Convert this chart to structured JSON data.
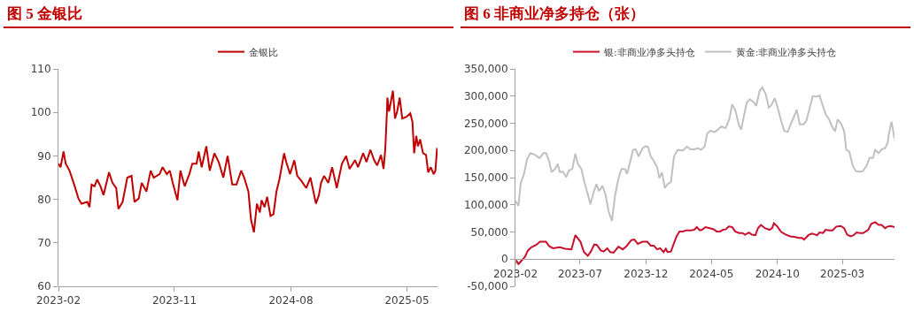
{
  "chart_data": [
    {
      "type": "line",
      "title": "图 5 金银比",
      "legend": "top",
      "grid": false,
      "xlim": [
        "2023-02-01",
        "2025-07-12"
      ],
      "xticks": [
        {
          "value": "2023-02-01",
          "label": "2023-02"
        },
        {
          "value": "2023-11-01",
          "label": "2023-11"
        },
        {
          "value": "2024-08-01",
          "label": "2024-08"
        },
        {
          "value": "2025-05-01",
          "label": "2025-05"
        }
      ],
      "ylim": [
        60,
        110
      ],
      "yticks": [
        60,
        70,
        80,
        90,
        100,
        110
      ],
      "series": [
        {
          "name": "金银比",
          "color": "#c00000",
          "x": [
            "2023-02-01",
            "2023-02-06",
            "2023-02-13",
            "2023-02-18",
            "2023-02-27",
            "2023-03-10",
            "2023-03-20",
            "2023-03-27",
            "2023-04-10",
            "2023-04-15",
            "2023-04-20",
            "2023-04-27",
            "2023-05-03",
            "2023-05-11",
            "2023-05-18",
            "2023-05-31",
            "2023-06-08",
            "2023-06-17",
            "2023-06-22",
            "2023-07-02",
            "2023-07-13",
            "2023-07-23",
            "2023-07-30",
            "2023-08-09",
            "2023-08-16",
            "2023-08-27",
            "2023-09-06",
            "2023-09-13",
            "2023-09-27",
            "2023-10-04",
            "2023-10-14",
            "2023-10-21",
            "2023-10-28",
            "2023-11-08",
            "2023-11-15",
            "2023-11-25",
            "2023-12-06",
            "2023-12-13",
            "2023-12-23",
            "2023-12-28",
            "2024-01-04",
            "2024-01-15",
            "2024-01-23",
            "2024-02-03",
            "2024-02-13",
            "2024-02-24",
            "2024-03-05",
            "2024-03-16",
            "2024-03-26",
            "2024-04-06",
            "2024-04-13",
            "2024-04-23",
            "2024-04-29",
            "2024-05-06",
            "2024-05-13",
            "2024-05-20",
            "2024-05-24",
            "2024-05-31",
            "2024-06-06",
            "2024-06-14",
            "2024-06-21",
            "2024-06-28",
            "2024-07-05",
            "2024-07-16",
            "2024-07-21",
            "2024-07-30",
            "2024-08-09",
            "2024-08-16",
            "2024-08-26",
            "2024-09-06",
            "2024-09-16",
            "2024-09-29",
            "2024-10-06",
            "2024-10-11",
            "2024-10-18",
            "2024-10-28",
            "2024-11-06",
            "2024-11-17",
            "2024-11-29",
            "2024-12-09",
            "2024-12-17",
            "2024-12-30",
            "2025-01-06",
            "2025-01-18",
            "2025-01-26",
            "2025-02-04",
            "2025-02-13",
            "2025-02-20",
            "2025-03-01",
            "2025-03-07",
            "2025-03-11",
            "2025-03-15",
            "2025-03-16",
            "2025-03-20",
            "2025-03-29",
            "2025-04-03",
            "2025-04-08",
            "2025-04-14",
            "2025-04-20",
            "2025-04-30",
            "2025-05-09",
            "2025-05-14",
            "2025-05-18",
            "2025-05-23",
            "2025-05-27",
            "2025-06-01",
            "2025-06-08",
            "2025-06-15",
            "2025-06-20",
            "2025-06-26",
            "2025-07-03",
            "2025-07-07",
            "2025-07-11"
          ],
          "values": [
            88.2,
            87.4,
            91.0,
            88.2,
            86.6,
            83.4,
            80.2,
            79.0,
            79.4,
            78.2,
            83.4,
            83.0,
            84.6,
            83.0,
            81.0,
            86.2,
            83.8,
            82.6,
            77.8,
            79.4,
            85.0,
            85.4,
            79.4,
            80.2,
            83.8,
            81.8,
            86.6,
            85.0,
            85.8,
            87.4,
            85.8,
            86.6,
            83.8,
            79.8,
            86.6,
            83.0,
            85.8,
            88.2,
            88.2,
            91.0,
            87.4,
            92.2,
            86.6,
            90.6,
            88.6,
            85.0,
            90.0,
            83.4,
            83.4,
            86.6,
            85.0,
            81.8,
            75.4,
            72.4,
            79.0,
            77.0,
            79.8,
            78.2,
            80.6,
            76.2,
            76.6,
            81.8,
            84.6,
            90.6,
            88.6,
            85.8,
            89.0,
            85.4,
            84.2,
            82.6,
            85.0,
            79.0,
            81.0,
            83.8,
            85.4,
            83.8,
            87.4,
            82.6,
            88.2,
            90.0,
            87.0,
            89.0,
            87.4,
            90.6,
            88.6,
            91.4,
            89.0,
            87.8,
            90.2,
            87.0,
            91.4,
            100.2,
            103.4,
            100.2,
            105.0,
            98.6,
            100.2,
            103.4,
            98.6,
            99.0,
            99.8,
            97.8,
            90.6,
            94.6,
            92.2,
            93.8,
            90.6,
            90.2,
            86.2,
            87.4,
            85.8,
            86.6,
            91.8
          ]
        }
      ]
    },
    {
      "type": "line",
      "title": "图 6 非商业净多持仓（张）",
      "legend": "top",
      "grid": false,
      "xlim": [
        "2023-02-01",
        "2025-06-30"
      ],
      "xticks": [
        {
          "value": "2023-02-01",
          "label": "2023-02"
        },
        {
          "value": "2023-07-01",
          "label": "2023-07"
        },
        {
          "value": "2023-12-01",
          "label": "2023-12"
        },
        {
          "value": "2024-05-01",
          "label": "2024-05"
        },
        {
          "value": "2024-10-01",
          "label": "2024-10"
        },
        {
          "value": "2025-03-01",
          "label": "2025-03"
        }
      ],
      "ylim": [
        -50000,
        350000
      ],
      "yticks": [
        {
          "value": -50000,
          "label": "-50,000"
        },
        0,
        {
          "value": 50000,
          "label": "50,000"
        },
        {
          "value": 100000,
          "label": "100,000"
        },
        {
          "value": 150000,
          "label": "150,000"
        },
        {
          "value": 200000,
          "label": "200,000"
        },
        {
          "value": 250000,
          "label": "250,000"
        },
        {
          "value": 300000,
          "label": "300,000"
        },
        {
          "value": 350000,
          "label": "350,000"
        }
      ],
      "series": [
        {
          "name": "银:非商业净多头持仓",
          "color": "#c8102e",
          "x": [
            "2023-02-01",
            "2023-02-08",
            "2023-02-16",
            "2023-02-23",
            "2023-03-02",
            "2023-03-10",
            "2023-03-21",
            "2023-03-30",
            "2023-04-13",
            "2023-04-20",
            "2023-04-29",
            "2023-05-15",
            "2023-05-27",
            "2023-06-11",
            "2023-06-20",
            "2023-07-02",
            "2023-07-10",
            "2023-07-19",
            "2023-07-26",
            "2023-08-03",
            "2023-08-09",
            "2023-08-18",
            "2023-08-25",
            "2023-09-02",
            "2023-09-09",
            "2023-09-17",
            "2023-09-28",
            "2023-10-08",
            "2023-10-17",
            "2023-10-28",
            "2023-11-04",
            "2023-11-12",
            "2023-11-23",
            "2023-12-04",
            "2023-12-12",
            "2023-12-19",
            "2023-12-27",
            "2024-01-03",
            "2024-01-11",
            "2024-01-16",
            "2024-01-20",
            "2024-01-28",
            "2024-02-02",
            "2024-02-10",
            "2024-02-17",
            "2024-02-25",
            "2024-03-03",
            "2024-03-14",
            "2024-03-22",
            "2024-03-28",
            "2024-04-04",
            "2024-04-09",
            "2024-04-17",
            "2024-04-27",
            "2024-05-06",
            "2024-05-13",
            "2024-05-21",
            "2024-05-28",
            "2024-06-04",
            "2024-06-10",
            "2024-06-18",
            "2024-06-25",
            "2024-07-04",
            "2024-07-12",
            "2024-07-18",
            "2024-07-27",
            "2024-08-03",
            "2024-08-11",
            "2024-08-17",
            "2024-08-24",
            "2024-09-02",
            "2024-09-13",
            "2024-09-19",
            "2024-09-23",
            "2024-10-01",
            "2024-10-10",
            "2024-10-21",
            "2024-10-31",
            "2024-11-09",
            "2024-11-20",
            "2024-11-27",
            "2024-12-02",
            "2024-12-12",
            "2024-12-20",
            "2024-12-29",
            "2025-01-01",
            "2025-01-07",
            "2025-01-15",
            "2025-01-21",
            "2025-01-30",
            "2025-02-06",
            "2025-02-15",
            "2025-02-25",
            "2025-03-05",
            "2025-03-12",
            "2025-03-20",
            "2025-03-27",
            "2025-04-03",
            "2025-04-11",
            "2025-04-18",
            "2025-04-30",
            "2025-05-07",
            "2025-05-16",
            "2025-05-24",
            "2025-05-31",
            "2025-06-08",
            "2025-06-14",
            "2025-06-21",
            "2025-06-30"
          ],
          "values": [
            0,
            -9000,
            -2000,
            4000,
            16000,
            22000,
            26000,
            32000,
            32000,
            24000,
            20000,
            22000,
            19000,
            18000,
            44000,
            32000,
            13000,
            6000,
            14000,
            27000,
            26000,
            16000,
            14000,
            20000,
            13000,
            12000,
            23000,
            18000,
            24000,
            35000,
            36000,
            28000,
            32000,
            32000,
            25000,
            25000,
            18000,
            20000,
            13000,
            19000,
            13000,
            14000,
            25000,
            42000,
            51000,
            51000,
            53000,
            53000,
            54000,
            59000,
            53000,
            54000,
            59000,
            57000,
            55000,
            51000,
            51000,
            54000,
            55000,
            60000,
            59000,
            51000,
            48000,
            48000,
            45000,
            49000,
            45000,
            44000,
            57000,
            63000,
            57000,
            54000,
            57000,
            66000,
            60000,
            50000,
            45000,
            42000,
            41000,
            39000,
            39000,
            36000,
            44000,
            47000,
            45000,
            44000,
            49000,
            48000,
            54000,
            53000,
            53000,
            60000,
            61000,
            57000,
            45000,
            42000,
            44000,
            49000,
            48000,
            48000,
            54000,
            65000,
            68000,
            63000,
            63000,
            57000,
            60000,
            61000,
            59000
          ]
        },
        {
          "name": "黄金:非商业净多头持仓",
          "color": "#c0c0c0",
          "x": [
            "2023-02-01",
            "2023-02-08",
            "2023-02-13",
            "2023-02-21",
            "2023-02-28",
            "2023-03-08",
            "2023-03-18",
            "2023-03-29",
            "2023-04-07",
            "2023-04-13",
            "2023-04-20",
            "2023-04-26",
            "2023-05-04",
            "2023-05-10",
            "2023-05-15",
            "2023-05-22",
            "2023-05-30",
            "2023-06-05",
            "2023-06-13",
            "2023-06-20",
            "2023-06-26",
            "2023-07-04",
            "2023-07-11",
            "2023-07-19",
            "2023-07-25",
            "2023-08-01",
            "2023-08-08",
            "2023-08-14",
            "2023-08-22",
            "2023-08-29",
            "2023-09-05",
            "2023-09-13",
            "2023-09-20",
            "2023-09-28",
            "2023-10-05",
            "2023-10-13",
            "2023-10-18",
            "2023-10-24",
            "2023-11-01",
            "2023-11-07",
            "2023-11-14",
            "2023-11-23",
            "2023-11-30",
            "2023-12-06",
            "2023-12-12",
            "2023-12-19",
            "2023-12-27",
            "2024-01-01",
            "2024-01-07",
            "2024-01-14",
            "2024-01-20",
            "2024-01-28",
            "2024-02-04",
            "2024-02-13",
            "2024-02-25",
            "2024-03-05",
            "2024-03-14",
            "2024-03-22",
            "2024-03-31",
            "2024-04-07",
            "2024-04-15",
            "2024-04-21",
            "2024-04-28",
            "2024-05-09",
            "2024-05-17",
            "2024-05-24",
            "2024-06-03",
            "2024-06-12",
            "2024-06-18",
            "2024-06-25",
            "2024-07-03",
            "2024-07-09",
            "2024-07-16",
            "2024-07-22",
            "2024-07-29",
            "2024-08-07",
            "2024-08-13",
            "2024-08-21",
            "2024-08-27",
            "2024-09-04",
            "2024-09-11",
            "2024-09-17",
            "2024-09-25",
            "2024-10-02",
            "2024-10-10",
            "2024-10-17",
            "2024-10-25",
            "2024-11-01",
            "2024-11-09",
            "2024-11-15",
            "2024-11-22",
            "2024-12-01",
            "2024-12-07",
            "2024-12-14",
            "2024-12-22",
            "2024-12-31",
            "2025-01-07",
            "2025-01-15",
            "2025-01-22",
            "2025-01-28",
            "2025-02-05",
            "2025-02-12",
            "2025-02-18",
            "2025-02-26",
            "2025-03-05",
            "2025-03-10",
            "2025-03-17",
            "2025-03-25",
            "2025-04-01",
            "2025-04-11",
            "2025-04-18",
            "2025-04-26",
            "2025-05-03",
            "2025-05-11",
            "2025-05-16",
            "2025-05-24",
            "2025-05-31",
            "2025-06-08",
            "2025-06-14",
            "2025-06-17",
            "2025-06-23",
            "2025-06-27",
            "2025-06-30"
          ],
          "values": [
            107000,
            98000,
            139000,
            157000,
            184000,
            195000,
            192000,
            186000,
            195000,
            195000,
            181000,
            160000,
            166000,
            175000,
            160000,
            161000,
            151000,
            163000,
            166000,
            194000,
            175000,
            166000,
            142000,
            119000,
            101000,
            122000,
            138000,
            125000,
            135000,
            119000,
            89000,
            70000,
            116000,
            148000,
            166000,
            166000,
            157000,
            175000,
            201000,
            202000,
            189000,
            204000,
            208000,
            206000,
            189000,
            181000,
            169000,
            149000,
            160000,
            131000,
            138000,
            142000,
            189000,
            201000,
            200000,
            207000,
            202000,
            202000,
            204000,
            201000,
            207000,
            231000,
            236000,
            234000,
            239000,
            244000,
            241000,
            259000,
            285000,
            275000,
            249000,
            238000,
            266000,
            288000,
            294000,
            289000,
            282000,
            310000,
            316000,
            304000,
            279000,
            283000,
            296000,
            278000,
            254000,
            236000,
            234000,
            248000,
            263000,
            275000,
            248000,
            248000,
            254000,
            275000,
            300000,
            299000,
            301000,
            281000,
            265000,
            259000,
            244000,
            235000,
            257000,
            249000,
            236000,
            201000,
            198000,
            172000,
            162000,
            161000,
            162000,
            172000,
            186000,
            186000,
            201000,
            195000,
            202000,
            204000,
            214000,
            231000,
            253000,
            236000,
            222000
          ]
        }
      ]
    }
  ]
}
